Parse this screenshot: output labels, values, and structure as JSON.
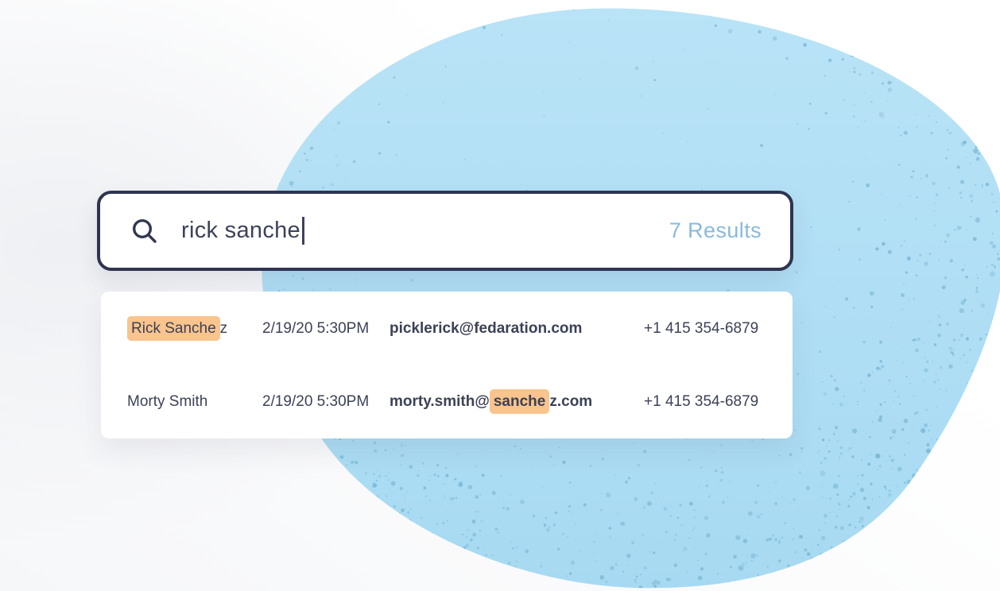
{
  "background": {
    "blob_color_top": "#b9e3f7",
    "blob_color_bottom": "#a7daf2",
    "speckle_color": "#7bb8d6"
  },
  "colors": {
    "accent_navy": "#2e3450",
    "highlight_orange": "#f9c48e",
    "results_count_blue": "#8ab9dc"
  },
  "search": {
    "query": "rick sanche",
    "results_label": "7 Results",
    "icon": "search-icon"
  },
  "results": {
    "rows": [
      {
        "name": {
          "pre": "",
          "match": "Rick Sanche",
          "post": "z"
        },
        "datetime": "2/19/20 5:30PM",
        "email": {
          "pre": "picklerick@fedaration.com",
          "match": "",
          "post": ""
        },
        "phone": "+1 415 354-6879"
      },
      {
        "name": {
          "pre": "Morty Smith",
          "match": "",
          "post": ""
        },
        "datetime": "2/19/20 5:30PM",
        "email": {
          "pre": "morty.smith@",
          "match": "sanche",
          "post": "z.com"
        },
        "phone": "+1 415 354-6879"
      }
    ]
  }
}
